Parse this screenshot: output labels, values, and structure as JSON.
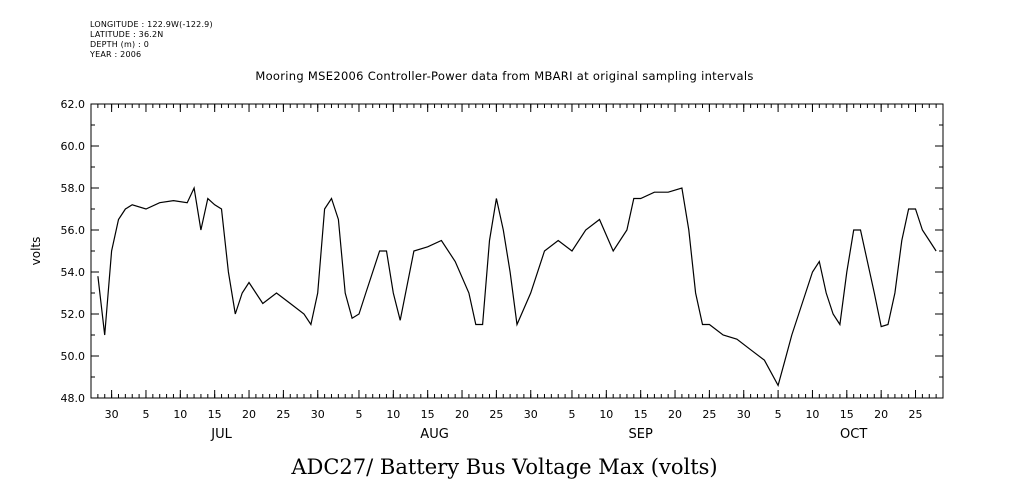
{
  "header": {
    "meta_lines": [
      "LONGITUDE : 122.9W(-122.9)",
      "LATITUDE : 36.2N",
      "DEPTH (m) : 0",
      "YEAR : 2006"
    ]
  },
  "chart_data": {
    "type": "line",
    "title": "Mooring MSE2006 Controller-Power data from MBARI at original sampling intervals",
    "xlabel": "ADC27/ Battery Bus Voltage Max (volts)",
    "ylabel": "volts",
    "ylim": [
      48.0,
      62.0
    ],
    "yticks": [
      "48.0",
      "50.0",
      "52.0",
      "54.0",
      "56.0",
      "58.0",
      "60.0",
      "62.0"
    ],
    "xlim": [
      "2006-06-27",
      "2006-10-29"
    ],
    "x_tick_labels": [
      "30",
      "5",
      "10",
      "15",
      "20",
      "25",
      "30",
      "5",
      "10",
      "15",
      "20",
      "25",
      "30",
      "5",
      "10",
      "15",
      "20",
      "25",
      "30",
      "5",
      "10",
      "15",
      "20",
      "25"
    ],
    "x_tick_dates": [
      "2006-06-30",
      "2006-07-05",
      "2006-07-10",
      "2006-07-15",
      "2006-07-20",
      "2006-07-25",
      "2006-07-30",
      "2006-08-05",
      "2006-08-10",
      "2006-08-15",
      "2006-08-20",
      "2006-08-25",
      "2006-08-30",
      "2006-09-05",
      "2006-09-10",
      "2006-09-15",
      "2006-09-20",
      "2006-09-25",
      "2006-09-30",
      "2006-10-05",
      "2006-10-10",
      "2006-10-15",
      "2006-10-20",
      "2006-10-25"
    ],
    "month_labels": [
      {
        "label": "JUL",
        "date": "2006-07-16"
      },
      {
        "label": "AUG",
        "date": "2006-08-16"
      },
      {
        "label": "SEP",
        "date": "2006-09-15"
      },
      {
        "label": "OCT",
        "date": "2006-10-16"
      }
    ],
    "grid": false,
    "series": [
      {
        "line_color": "#000000",
        "x": [
          "2006-06-28",
          "2006-06-29",
          "2006-06-30",
          "2006-07-01",
          "2006-07-02",
          "2006-07-03",
          "2006-07-05",
          "2006-07-07",
          "2006-07-09",
          "2006-07-11",
          "2006-07-12",
          "2006-07-13",
          "2006-07-14",
          "2006-07-15",
          "2006-07-16",
          "2006-07-17",
          "2006-07-18",
          "2006-07-19",
          "2006-07-20",
          "2006-07-22",
          "2006-07-24",
          "2006-07-26",
          "2006-07-28",
          "2006-07-29",
          "2006-07-30",
          "2006-07-31",
          "2006-08-01",
          "2006-08-02",
          "2006-08-03",
          "2006-08-04",
          "2006-08-05",
          "2006-08-06",
          "2006-08-08",
          "2006-08-09",
          "2006-08-10",
          "2006-08-11",
          "2006-08-13",
          "2006-08-15",
          "2006-08-17",
          "2006-08-19",
          "2006-08-21",
          "2006-08-22",
          "2006-08-23",
          "2006-08-24",
          "2006-08-25",
          "2006-08-26",
          "2006-08-27",
          "2006-08-28",
          "2006-08-30",
          "2006-09-01",
          "2006-09-03",
          "2006-09-05",
          "2006-09-07",
          "2006-09-09",
          "2006-09-11",
          "2006-09-13",
          "2006-09-14",
          "2006-09-15",
          "2006-09-17",
          "2006-09-19",
          "2006-09-21",
          "2006-09-22",
          "2006-09-23",
          "2006-09-24",
          "2006-09-25",
          "2006-09-27",
          "2006-09-29",
          "2006-10-01",
          "2006-10-03",
          "2006-10-05",
          "2006-10-06",
          "2006-10-07",
          "2006-10-08",
          "2006-10-09",
          "2006-10-10",
          "2006-10-11",
          "2006-10-12",
          "2006-10-13",
          "2006-10-14",
          "2006-10-15",
          "2006-10-16",
          "2006-10-17",
          "2006-10-18",
          "2006-10-19",
          "2006-10-20",
          "2006-10-21",
          "2006-10-22",
          "2006-10-23",
          "2006-10-24",
          "2006-10-25",
          "2006-10-26",
          "2006-10-27",
          "2006-10-28"
        ],
        "y": [
          53.8,
          51.0,
          55.0,
          56.5,
          57.0,
          57.2,
          57.0,
          57.3,
          57.4,
          57.3,
          58.0,
          56.0,
          57.5,
          57.2,
          57.0,
          54.0,
          52.0,
          53.0,
          53.5,
          52.5,
          53.0,
          52.5,
          52.0,
          51.5,
          53.0,
          57.0,
          57.5,
          56.5,
          53.0,
          51.8,
          52.0,
          53.0,
          55.0,
          55.0,
          53.0,
          51.7,
          55.0,
          55.2,
          55.5,
          54.5,
          53.0,
          51.5,
          51.5,
          55.5,
          57.5,
          56.0,
          54.0,
          51.5,
          53.0,
          55.0,
          55.5,
          55.0,
          56.0,
          56.5,
          55.0,
          56.0,
          57.5,
          57.5,
          57.8,
          57.8,
          58.0,
          56.0,
          53.0,
          51.5,
          51.5,
          51.0,
          50.8,
          50.3,
          49.8,
          48.6,
          49.8,
          51.0,
          52.0,
          53.0,
          54.0,
          54.5,
          53.0,
          52.0,
          51.5,
          54.0,
          56.0,
          56.0,
          54.5,
          53.0,
          51.4,
          51.5,
          53.0,
          55.5,
          57.0,
          57.0,
          56.0,
          55.5,
          55.0
        ]
      }
    ]
  }
}
